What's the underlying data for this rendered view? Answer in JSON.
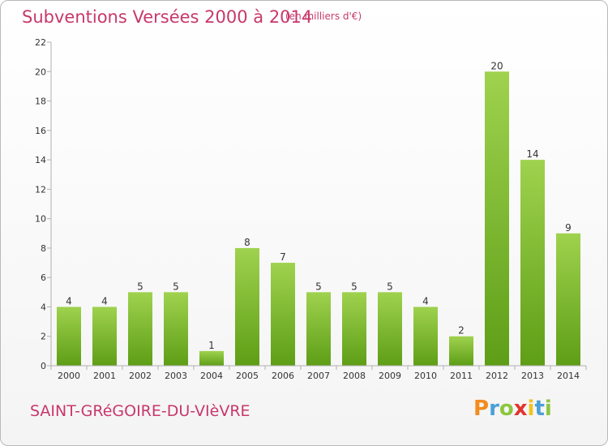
{
  "header": {
    "title": "Subventions Versées 2000 à 2014",
    "unit": "(en milliers d'€)"
  },
  "footer": {
    "commune": "SAINT-GRéGOIRE-DU-VIèVRE",
    "logo_letters": [
      "P",
      "r",
      "o",
      "x",
      "i",
      "t",
      "i"
    ],
    "logo_colors": [
      "#f28c1e",
      "#4a9fd8",
      "#8cc63f",
      "#e3342f",
      "#f2c21e",
      "#4a9fd8",
      "#8cc63f"
    ]
  },
  "chart_data": {
    "type": "bar",
    "categories": [
      "2000",
      "2001",
      "2002",
      "2003",
      "2004",
      "2005",
      "2006",
      "2007",
      "2008",
      "2009",
      "2010",
      "2011",
      "2012",
      "2013",
      "2014"
    ],
    "values": [
      4,
      4,
      5,
      5,
      1,
      8,
      7,
      5,
      5,
      5,
      4,
      2,
      20,
      14,
      9
    ],
    "ylim": [
      0,
      22
    ],
    "yticks": [
      0,
      2,
      4,
      6,
      8,
      10,
      12,
      14,
      16,
      18,
      20,
      22
    ],
    "grid": false,
    "bar_color_top": "#9fd24e",
    "bar_color_bottom": "#5e9e16",
    "axis_color": "#b0b0b0"
  }
}
